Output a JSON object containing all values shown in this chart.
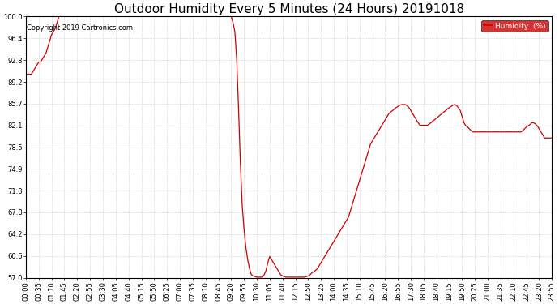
{
  "title": "Outdoor Humidity Every 5 Minutes (24 Hours) 20191018",
  "copyright_text": "Copyright 2019 Cartronics.com",
  "line_color": "#cc0000",
  "background_color": "#ffffff",
  "plot_bg_color": "#ffffff",
  "legend_label": "Humidity  (%)",
  "legend_bg": "#cc0000",
  "legend_text_color": "#ffffff",
  "ylim": [
    57.0,
    100.0
  ],
  "yticks": [
    57.0,
    60.6,
    64.2,
    67.8,
    71.3,
    74.9,
    78.5,
    82.1,
    85.7,
    89.2,
    92.8,
    96.4,
    100.0
  ],
  "grid_color": "#bbbbbb",
  "title_fontsize": 11,
  "copyright_fontsize": 6,
  "tick_fontsize": 6,
  "humidity_data": [
    90.5,
    90.5,
    90.5,
    90.5,
    91.0,
    91.5,
    92.0,
    92.5,
    92.5,
    93.0,
    93.5,
    94.0,
    95.0,
    96.0,
    97.0,
    97.5,
    98.0,
    99.0,
    100.0,
    100.0,
    100.0,
    100.0,
    100.0,
    100.0,
    100.0,
    100.0,
    100.0,
    100.0,
    100.0,
    100.0,
    100.0,
    100.0,
    100.0,
    100.0,
    100.0,
    100.0,
    100.0,
    100.0,
    100.0,
    100.0,
    100.0,
    100.0,
    100.0,
    100.0,
    100.0,
    100.0,
    100.0,
    100.0,
    100.0,
    100.0,
    100.0,
    100.0,
    100.0,
    100.0,
    100.0,
    100.0,
    100.0,
    100.0,
    100.0,
    100.0,
    100.0,
    100.0,
    100.0,
    100.0,
    100.0,
    100.0,
    100.0,
    100.0,
    100.0,
    100.0,
    100.0,
    100.0,
    100.0,
    100.0,
    100.0,
    100.0,
    100.0,
    100.0,
    100.0,
    100.0,
    100.0,
    100.0,
    100.0,
    100.0,
    100.0,
    100.0,
    100.0,
    100.0,
    100.0,
    100.0,
    100.0,
    100.0,
    100.0,
    100.0,
    100.0,
    100.0,
    100.0,
    100.0,
    100.0,
    100.0,
    100.0,
    100.0,
    100.0,
    100.0,
    100.0,
    100.0,
    100.0,
    100.0,
    100.0,
    100.0,
    100.0,
    100.0,
    100.0,
    99.0,
    97.5,
    93.0,
    85.0,
    76.0,
    69.0,
    65.0,
    62.0,
    60.0,
    58.5,
    57.5,
    57.3,
    57.2,
    57.1,
    57.1,
    57.1,
    57.1,
    57.5,
    58.2,
    59.5,
    60.5,
    60.0,
    59.5,
    59.0,
    58.5,
    58.0,
    57.5,
    57.3,
    57.2,
    57.1,
    57.1,
    57.1,
    57.1,
    57.1,
    57.1,
    57.1,
    57.1,
    57.1,
    57.1,
    57.1,
    57.2,
    57.3,
    57.5,
    57.8,
    58.0,
    58.2,
    58.5,
    59.0,
    59.5,
    60.0,
    60.5,
    61.0,
    61.5,
    62.0,
    62.5,
    63.0,
    63.5,
    64.0,
    64.5,
    65.0,
    65.5,
    66.0,
    66.5,
    67.0,
    68.0,
    69.0,
    70.0,
    71.0,
    72.0,
    73.0,
    74.0,
    75.0,
    76.0,
    77.0,
    78.0,
    79.0,
    79.5,
    80.0,
    80.5,
    81.0,
    81.5,
    82.0,
    82.5,
    83.0,
    83.5,
    84.0,
    84.3,
    84.5,
    84.8,
    85.0,
    85.2,
    85.4,
    85.5,
    85.5,
    85.5,
    85.3,
    85.0,
    84.5,
    84.0,
    83.5,
    83.0,
    82.5,
    82.1,
    82.1,
    82.1,
    82.1,
    82.1,
    82.3,
    82.5,
    82.8,
    83.0,
    83.3,
    83.5,
    83.8,
    84.0,
    84.3,
    84.5,
    84.8,
    85.0,
    85.2,
    85.4,
    85.5,
    85.3,
    85.0,
    84.5,
    83.5,
    82.5,
    82.0,
    81.8,
    81.5,
    81.2,
    81.0,
    81.0,
    81.0,
    81.0,
    81.0,
    81.0,
    81.0,
    81.0,
    81.0,
    81.0,
    81.0,
    81.0,
    81.0,
    81.0,
    81.0,
    81.0,
    81.0,
    81.0,
    81.0,
    81.0,
    81.0,
    81.0,
    81.0,
    81.0,
    81.0,
    81.0,
    81.0,
    81.2,
    81.5,
    81.8,
    82.0,
    82.2,
    82.5,
    82.5,
    82.3,
    82.0,
    81.5,
    81.0,
    80.5,
    80.0,
    80.0,
    80.0,
    80.0,
    80.0
  ],
  "xtick_labels": [
    "00:00",
    "00:35",
    "01:10",
    "01:45",
    "02:20",
    "02:55",
    "03:30",
    "04:05",
    "04:40",
    "05:15",
    "05:50",
    "06:25",
    "07:00",
    "07:35",
    "08:10",
    "08:45",
    "09:20",
    "09:55",
    "10:30",
    "11:05",
    "11:40",
    "12:15",
    "12:50",
    "13:25",
    "14:00",
    "14:35",
    "15:10",
    "15:45",
    "16:20",
    "16:55",
    "17:30",
    "18:05",
    "18:40",
    "19:15",
    "19:50",
    "20:25",
    "21:00",
    "21:35",
    "22:10",
    "22:45",
    "23:20",
    "23:55"
  ]
}
